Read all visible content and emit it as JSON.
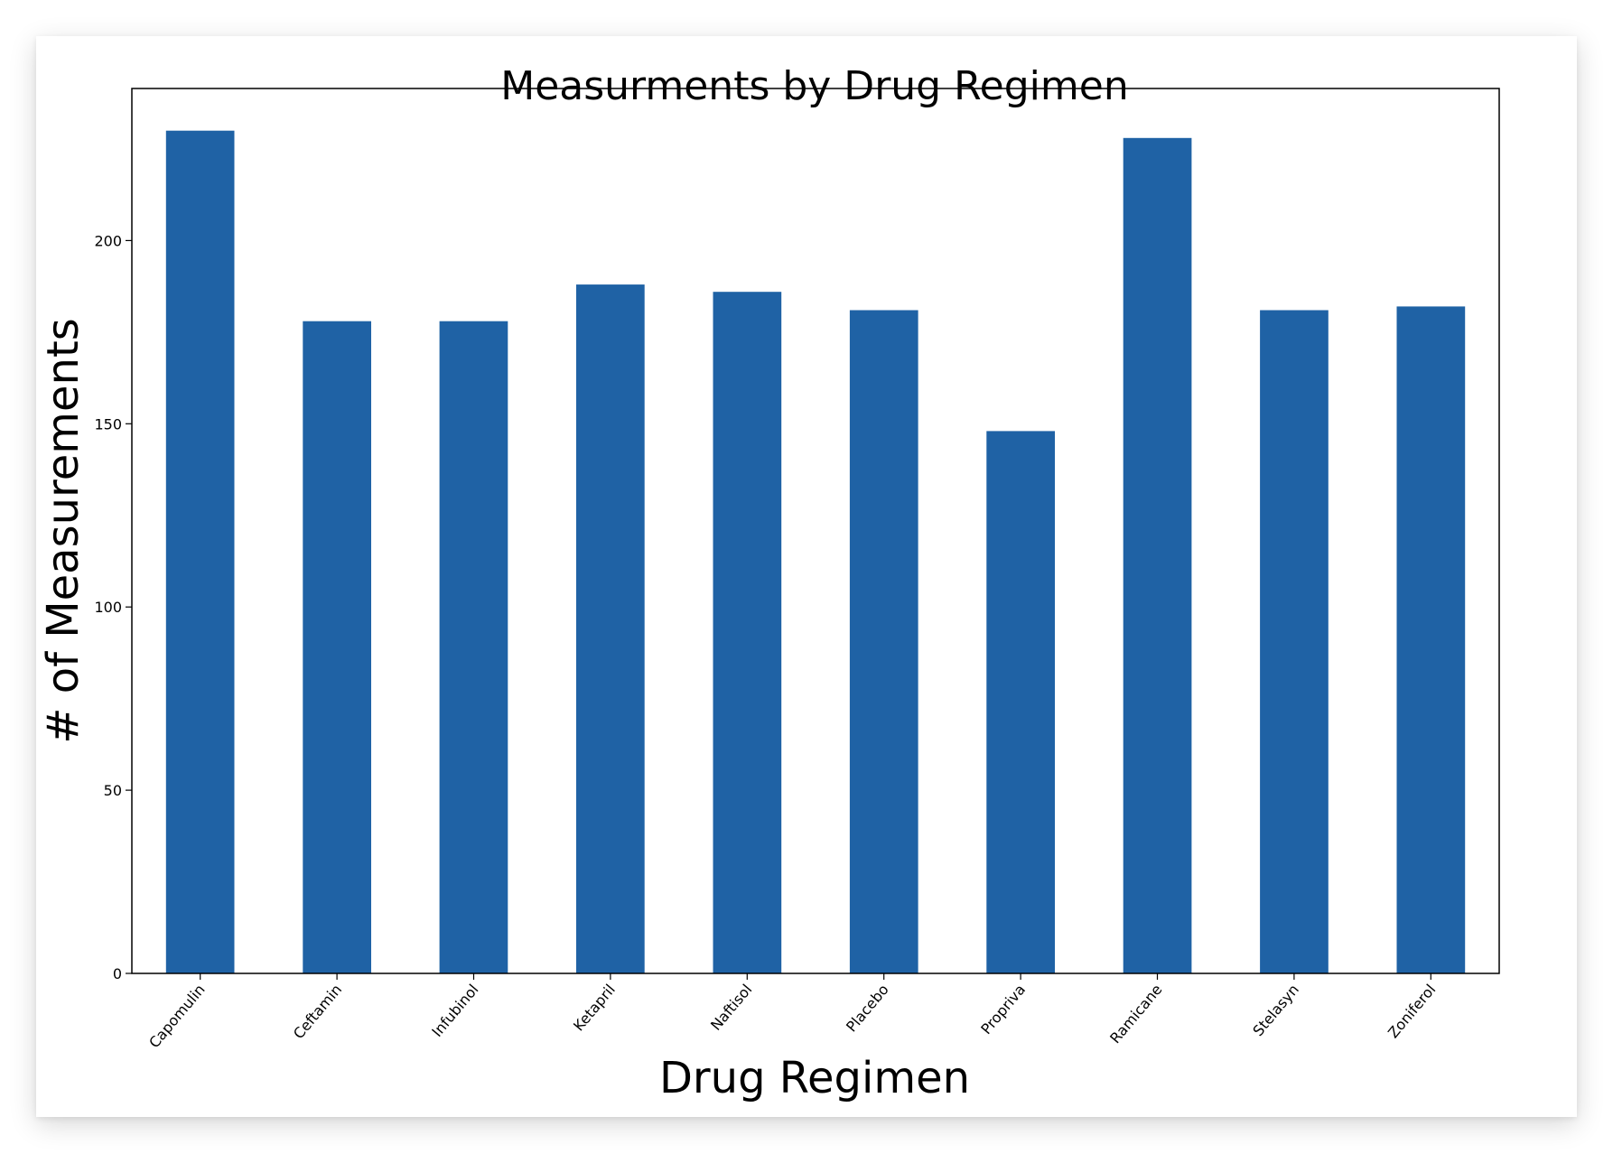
{
  "chart_data": {
    "type": "bar",
    "title": "Measurments by Drug Regimen",
    "xlabel": "Drug Regimen",
    "ylabel": "# of Measurements",
    "categories": [
      "Capomulin",
      "Ceftamin",
      "Infubinol",
      "Ketapril",
      "Naftisol",
      "Placebo",
      "Propriva",
      "Ramicane",
      "Stelasyn",
      "Zoniferol"
    ],
    "values": [
      230,
      178,
      178,
      188,
      186,
      181,
      148,
      228,
      181,
      182
    ],
    "yticks": [
      0,
      50,
      100,
      150,
      200
    ],
    "ylim": [
      0,
      241.5
    ],
    "bar_color": "#1f62a5",
    "grid": false
  }
}
